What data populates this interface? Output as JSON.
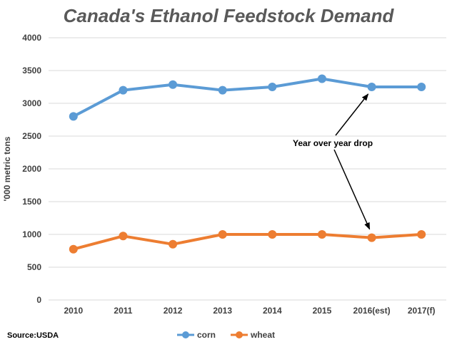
{
  "chart_data": {
    "type": "line",
    "title": "Canada's Ethanol Feedstock Demand",
    "xlabel": "",
    "ylabel": "'000 metric tons",
    "categories": [
      "2010",
      "2011",
      "2012",
      "2013",
      "2014",
      "2015",
      "2016(est)",
      "2017(f)"
    ],
    "ylim": [
      0,
      4000
    ],
    "yticks": [
      "0",
      "500",
      "1000",
      "1500",
      "2000",
      "2500",
      "3000",
      "3500",
      "4000"
    ],
    "grid": true,
    "legend_position": "bottom",
    "series": [
      {
        "name": "corn",
        "color": "#5b9bd5",
        "values": [
          2800,
          3200,
          3285,
          3200,
          3250,
          3375,
          3250,
          3250
        ]
      },
      {
        "name": "wheat",
        "color": "#ed7d31",
        "values": [
          775,
          975,
          850,
          1000,
          1000,
          1000,
          950,
          1000
        ]
      }
    ],
    "annotation": {
      "text": "Year over year drop",
      "targets": [
        {
          "series": "corn",
          "category": "2016(est)"
        },
        {
          "series": "wheat",
          "category": "2016(est)"
        }
      ]
    },
    "source": "Source:USDA"
  }
}
